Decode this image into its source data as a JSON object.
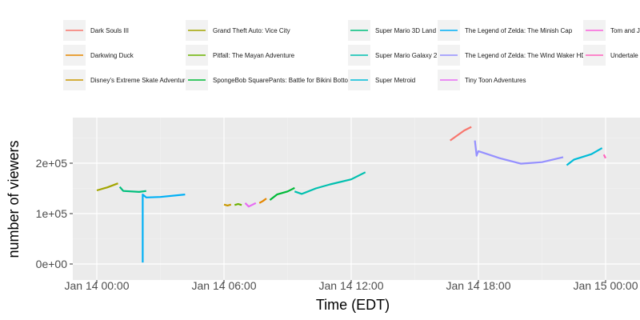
{
  "chart_data": {
    "type": "line",
    "xlabel": "Time (EDT)",
    "ylabel": "number of viewers",
    "x_ticks": [
      "Jan 14 00:00",
      "Jan 14 06:00",
      "Jan 14 12:00",
      "Jan 14 18:00",
      "Jan 15 00:00"
    ],
    "y_ticks": [
      "0e+00",
      "1e+05",
      "2e+05"
    ],
    "xlim": [
      "2018-01-13T22:00",
      "2018-01-15T00:00"
    ],
    "ylim": [
      -17000,
      285000
    ],
    "grid": true,
    "legend_position": "top",
    "series": [
      {
        "name": "Dark Souls III",
        "color": "#F8766D",
        "points": [
          [
            "2018-01-14T16:40",
            245000
          ],
          [
            "2018-01-14T17:00",
            255000
          ],
          [
            "2018-01-14T17:20",
            265000
          ],
          [
            "2018-01-14T17:40",
            272000
          ]
        ]
      },
      {
        "name": "Darkwing Duck",
        "color": "#E58700",
        "points": [
          [
            "2018-01-14T07:40",
            121000
          ],
          [
            "2018-01-14T07:50",
            125000
          ],
          [
            "2018-01-14T08:00",
            130000
          ]
        ]
      },
      {
        "name": "Disney's Extreme Skate Adventure",
        "color": "#C99800",
        "points": [
          [
            "2018-01-14T06:00",
            118000
          ],
          [
            "2018-01-14T06:10",
            116000
          ],
          [
            "2018-01-14T06:20",
            118000
          ]
        ]
      },
      {
        "name": "Grand Theft Auto: Vice City",
        "color": "#A3A500",
        "points": [
          [
            "2018-01-14T00:00",
            146000
          ],
          [
            "2018-01-14T00:30",
            152000
          ],
          [
            "2018-01-14T01:00",
            160000
          ]
        ]
      },
      {
        "name": "Pitfall: The Mayan Adventure",
        "color": "#6BB100",
        "points": [
          [
            "2018-01-14T06:30",
            117000
          ],
          [
            "2018-01-14T06:40",
            119000
          ],
          [
            "2018-01-14T06:50",
            117000
          ]
        ]
      },
      {
        "name": "SpongeBob SquarePants: Battle for Bikini Bottom",
        "color": "#00BA38",
        "points": [
          [
            "2018-01-14T08:10",
            127000
          ],
          [
            "2018-01-14T08:30",
            138000
          ],
          [
            "2018-01-14T09:00",
            144000
          ],
          [
            "2018-01-14T09:20",
            151000
          ]
        ]
      },
      {
        "name": "Super Mario 3D Land",
        "color": "#00BF7D",
        "points": [
          [
            "2018-01-14T01:05",
            153000
          ],
          [
            "2018-01-14T01:15",
            145000
          ],
          [
            "2018-01-14T02:00",
            143000
          ],
          [
            "2018-01-14T02:20",
            145000
          ]
        ]
      },
      {
        "name": "Super Mario Galaxy 2",
        "color": "#00C0AF",
        "points": [
          [
            "2018-01-14T09:20",
            144000
          ],
          [
            "2018-01-14T09:40",
            139000
          ],
          [
            "2018-01-14T10:20",
            150000
          ],
          [
            "2018-01-14T11:00",
            158000
          ],
          [
            "2018-01-14T12:00",
            168000
          ],
          [
            "2018-01-14T12:40",
            182000
          ]
        ]
      },
      {
        "name": "Super Metroid",
        "color": "#00BCD8",
        "points": [
          [
            "2018-01-14T22:10",
            196000
          ],
          [
            "2018-01-14T22:30",
            207000
          ],
          [
            "2018-01-14T23:20",
            218000
          ],
          [
            "2018-01-14T23:50",
            230000
          ]
        ]
      },
      {
        "name": "The Legend of Zelda: The Minish Cap",
        "color": "#00B0F6",
        "points": [
          [
            "2018-01-14T02:10",
            3000
          ],
          [
            "2018-01-14T02:10",
            138000
          ],
          [
            "2018-01-14T02:20",
            132000
          ],
          [
            "2018-01-14T03:00",
            133000
          ],
          [
            "2018-01-14T04:10",
            138000
          ]
        ]
      },
      {
        "name": "The Legend of Zelda: The Wind Waker HD",
        "color": "#9590FF",
        "points": [
          [
            "2018-01-14T17:50",
            245000
          ],
          [
            "2018-01-14T17:55",
            215000
          ],
          [
            "2018-01-14T18:00",
            224000
          ],
          [
            "2018-01-14T19:00",
            210000
          ],
          [
            "2018-01-14T20:00",
            199000
          ],
          [
            "2018-01-14T21:00",
            202000
          ],
          [
            "2018-01-14T22:00",
            212000
          ]
        ]
      },
      {
        "name": "Tiny Toon Adventures",
        "color": "#E76BF3",
        "points": [
          [
            "2018-01-14T07:00",
            121000
          ],
          [
            "2018-01-14T07:10",
            114000
          ],
          [
            "2018-01-14T07:30",
            121000
          ]
        ]
      },
      {
        "name": "Tom and Jerry",
        "color": "#FA62DB",
        "points": []
      },
      {
        "name": "Undertale",
        "color": "#FF62BC",
        "points": [
          [
            "2018-01-14T23:55",
            217000
          ],
          [
            "2018-01-15T00:00",
            210000
          ]
        ]
      }
    ]
  }
}
